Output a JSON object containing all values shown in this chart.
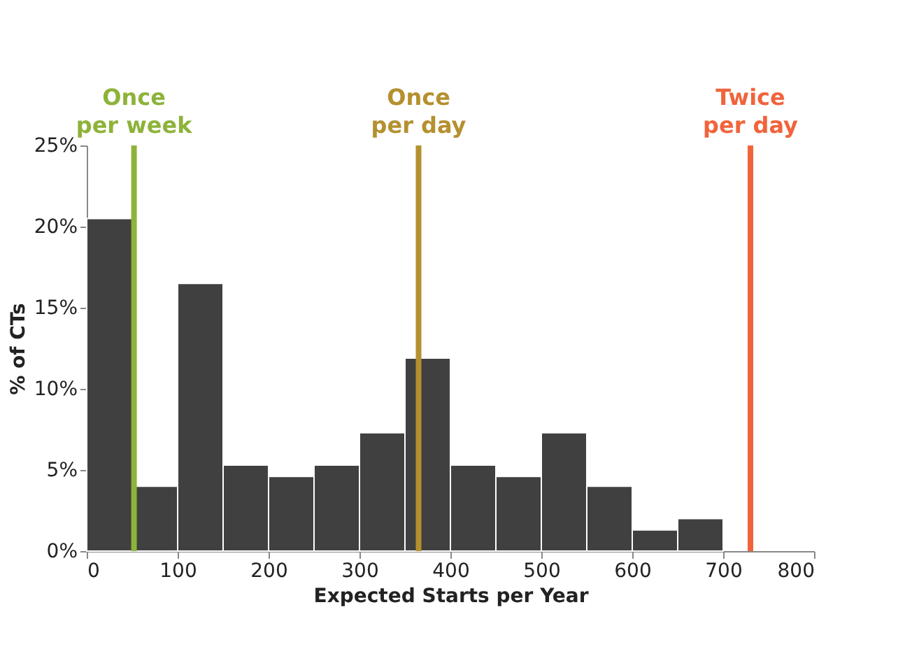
{
  "chart_data": {
    "type": "histogram",
    "xlabel": "Expected Starts per Year",
    "ylabel": "% of CTs",
    "bins": [
      0,
      50,
      100,
      150,
      200,
      250,
      300,
      350,
      400,
      450,
      500,
      550,
      600,
      650,
      700
    ],
    "values": [
      20.5,
      4.0,
      16.5,
      5.3,
      4.6,
      5.3,
      7.3,
      11.9,
      5.3,
      4.6,
      7.3,
      4.0,
      1.3,
      2.0
    ],
    "color": "#404040",
    "xlim": [
      0,
      800
    ],
    "xticks": [
      0,
      100,
      200,
      300,
      400,
      500,
      600,
      700,
      800
    ],
    "ylim": [
      0,
      25
    ],
    "yticks": [
      {
        "value": 0,
        "label": "0%"
      },
      {
        "value": 5,
        "label": "5%"
      },
      {
        "value": 10,
        "label": "10%"
      },
      {
        "value": 15,
        "label": "15%"
      },
      {
        "value": 20,
        "label": "20%"
      },
      {
        "value": 25,
        "label": "25%"
      }
    ],
    "grid": false,
    "ref_lines": [
      {
        "axis": "x",
        "value": 52,
        "label": "Once per week",
        "color": "#8db33a"
      },
      {
        "axis": "x",
        "value": 365,
        "label": "Once per day",
        "color": "#b5902f"
      },
      {
        "axis": "x",
        "value": 730,
        "label": "Twice per day",
        "color": "#f0643c"
      }
    ]
  }
}
